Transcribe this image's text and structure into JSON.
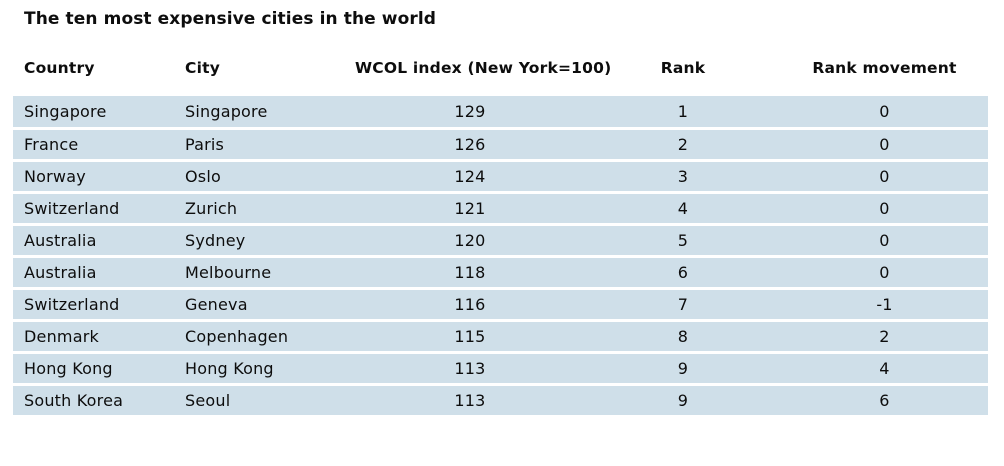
{
  "title": "The ten most expensive cities in the world",
  "colors": {
    "row_background": "#cfdfe9",
    "text": "#0d0d0d",
    "page_background": "#ffffff"
  },
  "chart_data": {
    "type": "table",
    "title": "The ten most expensive cities in the world",
    "columns": [
      "Country",
      "City",
      "WCOL index (New York=100)",
      "Rank",
      "Rank movement"
    ],
    "rows": [
      {
        "country": "Singapore",
        "city": "Singapore",
        "wcol_index": "129",
        "rank": "1",
        "rank_movement": "0"
      },
      {
        "country": "France",
        "city": "Paris",
        "wcol_index": "126",
        "rank": "2",
        "rank_movement": "0"
      },
      {
        "country": "Norway",
        "city": "Oslo",
        "wcol_index": "124",
        "rank": "3",
        "rank_movement": "0"
      },
      {
        "country": "Switzerland",
        "city": "Zurich",
        "wcol_index": "121",
        "rank": "4",
        "rank_movement": "0"
      },
      {
        "country": "Australia",
        "city": "Sydney",
        "wcol_index": "120",
        "rank": "5",
        "rank_movement": "0"
      },
      {
        "country": "Australia",
        "city": "Melbourne",
        "wcol_index": "118",
        "rank": "6",
        "rank_movement": "0"
      },
      {
        "country": "Switzerland",
        "city": "Geneva",
        "wcol_index": "116",
        "rank": "7",
        "rank_movement": "-1"
      },
      {
        "country": "Denmark",
        "city": "Copenhagen",
        "wcol_index": "115",
        "rank": "8",
        "rank_movement": "2"
      },
      {
        "country": "Hong Kong",
        "city": "Hong Kong",
        "wcol_index": "113",
        "rank": "9",
        "rank_movement": "4"
      },
      {
        "country": "South Korea",
        "city": "Seoul",
        "wcol_index": "113",
        "rank": "9",
        "rank_movement": "6"
      }
    ]
  }
}
